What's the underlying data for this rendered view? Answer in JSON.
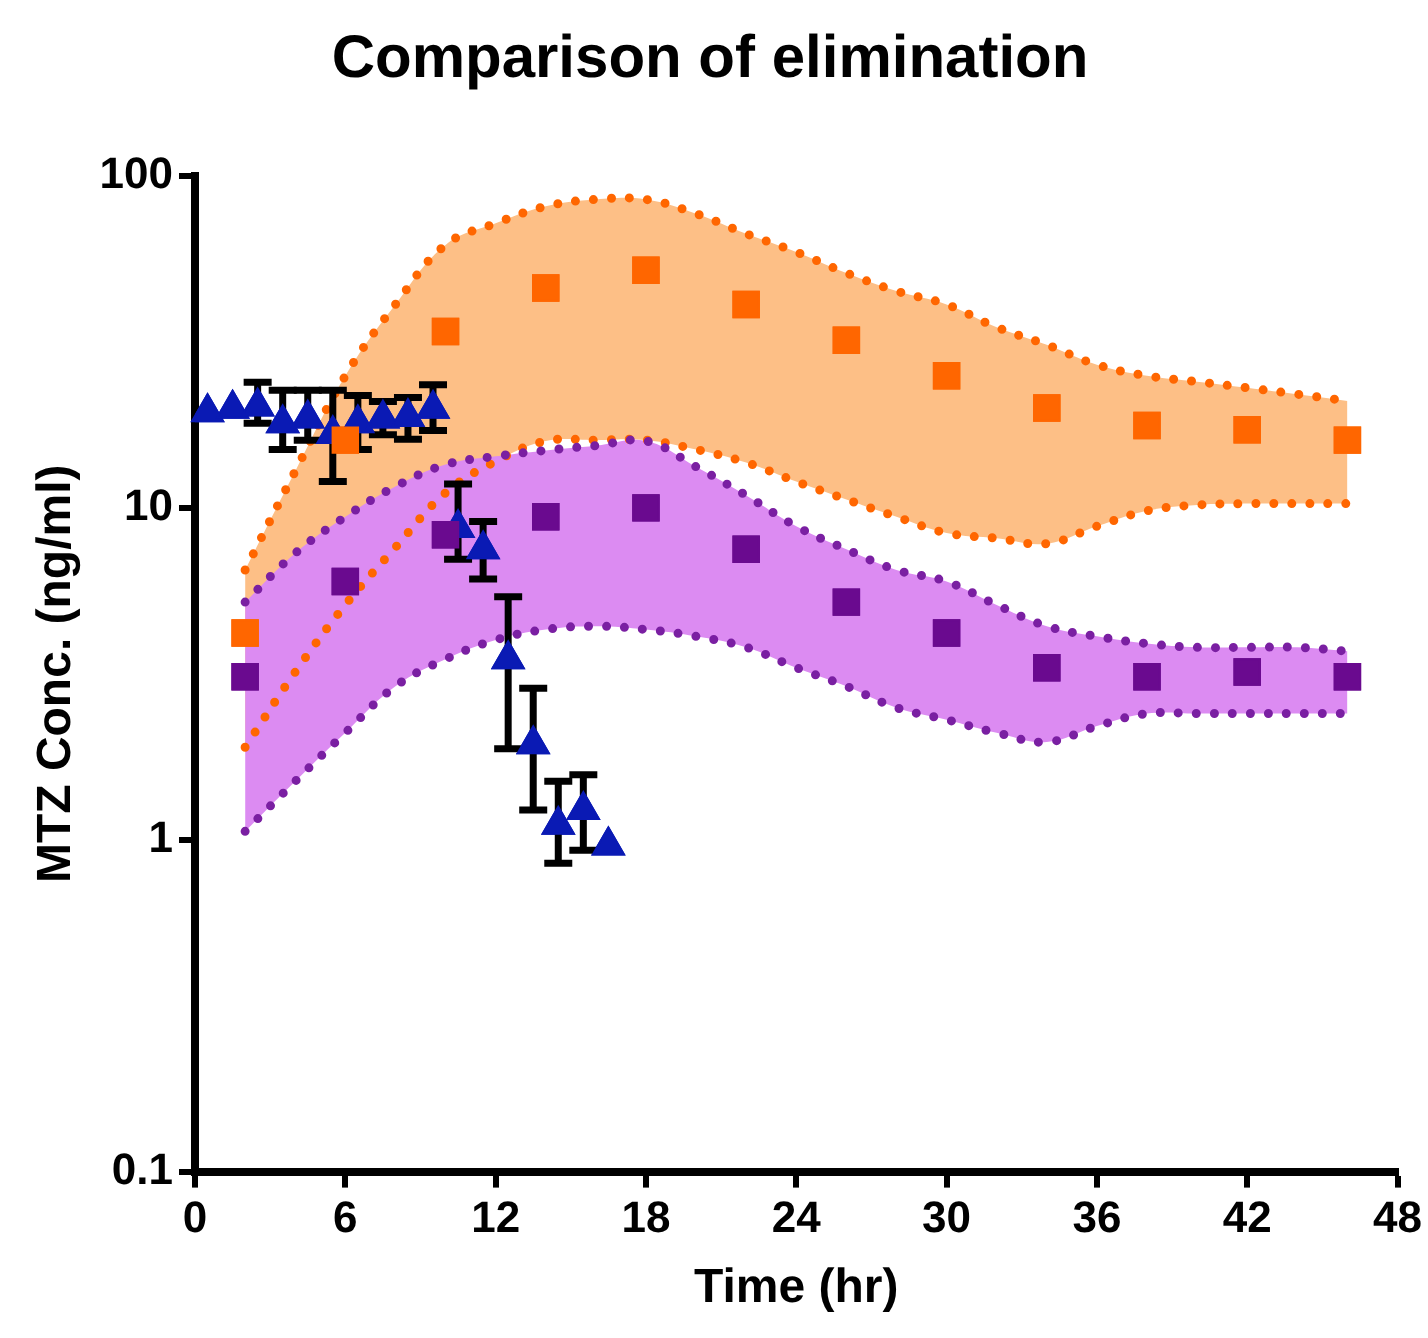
{
  "chart_data": {
    "type": "scatter",
    "title": "Comparison of elimination",
    "xlabel": "Time (hr)",
    "ylabel": "MTZ Conc. (ng/ml)",
    "log": "y",
    "grid": false,
    "legend": false,
    "xlim": [
      0,
      48
    ],
    "xticks": [
      0,
      6,
      12,
      18,
      24,
      30,
      36,
      42,
      48
    ],
    "ylim": [
      0.1,
      100
    ],
    "yticks": [
      0.1,
      1,
      10,
      100
    ],
    "series": [
      {
        "type": "area",
        "color": "#dc8bf2",
        "x": [
          2,
          4,
          6,
          8,
          10,
          12,
          14,
          16,
          18,
          20,
          22,
          24,
          26,
          28,
          30,
          32,
          34,
          36,
          38,
          40,
          42,
          44,
          46
        ],
        "values": [
          null,
          null,
          null,
          null,
          null,
          null,
          null,
          null,
          null,
          null,
          null,
          null,
          null,
          null,
          null,
          null,
          null,
          null,
          null,
          null,
          null,
          null,
          null
        ],
        "upper": [
          5.2,
          7.3,
          9.4,
          11.6,
          13.5,
          14.3,
          14.9,
          15.4,
          15.9,
          13.3,
          10.9,
          8.8,
          7.5,
          6.5,
          6,
          5.1,
          4.4,
          4.1,
          3.9,
          3.8,
          3.8,
          3.8,
          3.7
        ],
        "lower": [
          1.06,
          1.5,
          2.1,
          2.9,
          3.5,
          4,
          4.3,
          4.4,
          4.3,
          4.1,
          3.8,
          3.3,
          2.9,
          2.5,
          2.3,
          2.1,
          1.97,
          2.2,
          2.4,
          2.4,
          2.4,
          2.4,
          2.4
        ]
      },
      {
        "type": "area",
        "color": "#fdbf86",
        "x": [
          2,
          4,
          6,
          8,
          10,
          12,
          14,
          16,
          18,
          20,
          22,
          24,
          26,
          28,
          30,
          32,
          34,
          36,
          38,
          40,
          42,
          44,
          46
        ],
        "values": [
          null,
          null,
          null,
          null,
          null,
          null,
          null,
          null,
          null,
          null,
          null,
          null,
          null,
          null,
          null,
          null,
          null,
          null,
          null,
          null,
          null,
          null,
          null
        ],
        "upper": [
          6.5,
          12.9,
          25,
          41,
          62,
          72,
          81,
          85,
          85,
          77,
          67,
          59,
          51,
          45,
          41,
          35,
          31,
          27,
          25,
          24,
          23,
          22,
          21
        ],
        "lower": [
          1.9,
          3.2,
          5.1,
          7.6,
          11.1,
          13.8,
          15.9,
          16,
          16,
          15,
          13.7,
          12,
          10.6,
          9.4,
          8.4,
          8.1,
          7.8,
          8.8,
          9.8,
          10.2,
          10.3,
          10.3,
          10.3
        ]
      },
      {
        "type": "line",
        "color": "#7a1fa2",
        "line_style": "dotted",
        "marker": "none",
        "x": [
          2,
          4,
          6,
          8,
          10,
          12,
          14,
          16,
          18,
          20,
          22,
          24,
          26,
          28,
          30,
          32,
          34,
          36,
          38,
          40,
          42,
          44,
          46
        ],
        "values": [
          5.2,
          7.3,
          9.4,
          11.6,
          13.5,
          14.3,
          14.9,
          15.4,
          15.9,
          13.3,
          10.9,
          8.8,
          7.5,
          6.5,
          6,
          5.1,
          4.4,
          4.1,
          3.9,
          3.8,
          3.8,
          3.8,
          3.7
        ]
      },
      {
        "type": "line",
        "color": "#7a1fa2",
        "line_style": "dotted",
        "marker": "none",
        "x": [
          2,
          4,
          6,
          8,
          10,
          12,
          14,
          16,
          18,
          20,
          22,
          24,
          26,
          28,
          30,
          32,
          34,
          36,
          38,
          40,
          42,
          44,
          46
        ],
        "values": [
          1.06,
          1.5,
          2.1,
          2.9,
          3.5,
          4,
          4.3,
          4.4,
          4.3,
          4.1,
          3.8,
          3.3,
          2.9,
          2.5,
          2.3,
          2.1,
          1.97,
          2.2,
          2.4,
          2.4,
          2.4,
          2.4,
          2.4
        ]
      },
      {
        "type": "line",
        "color": "#ff6600",
        "line_style": "dotted",
        "marker": "none",
        "x": [
          2,
          4,
          6,
          8,
          10,
          12,
          14,
          16,
          18,
          20,
          22,
          24,
          26,
          28,
          30,
          32,
          34,
          36,
          38,
          40,
          42,
          44,
          46
        ],
        "values": [
          6.5,
          12.9,
          25,
          41,
          62,
          72,
          81,
          85,
          85,
          77,
          67,
          59,
          51,
          45,
          41,
          35,
          31,
          27,
          25,
          24,
          23,
          22,
          21
        ]
      },
      {
        "type": "line",
        "color": "#ff6600",
        "line_style": "dotted",
        "marker": "none",
        "x": [
          2,
          4,
          6,
          8,
          10,
          12,
          14,
          16,
          18,
          20,
          22,
          24,
          26,
          28,
          30,
          32,
          34,
          36,
          38,
          40,
          42,
          44,
          46
        ],
        "values": [
          1.9,
          3.2,
          5.1,
          7.6,
          11.1,
          13.8,
          15.9,
          16,
          16,
          15,
          13.7,
          12,
          10.6,
          9.4,
          8.4,
          8.1,
          7.8,
          8.8,
          9.8,
          10.2,
          10.3,
          10.3,
          10.3
        ]
      },
      {
        "type": "scatter",
        "color": "#ff6600",
        "marker": "square",
        "x": [
          2,
          6,
          10,
          14,
          18,
          22,
          26,
          30,
          34,
          38,
          42,
          46
        ],
        "values": [
          4.2,
          16,
          34,
          46,
          52,
          41,
          32,
          25,
          20,
          17.7,
          17.2,
          16
        ]
      },
      {
        "type": "scatter",
        "color": "#6a0a8f",
        "marker": "square",
        "x": [
          2,
          6,
          10,
          14,
          18,
          22,
          26,
          30,
          34,
          38,
          42,
          46
        ],
        "values": [
          3.1,
          6,
          8.3,
          9.4,
          10,
          7.5,
          5.2,
          4.2,
          3.3,
          3.1,
          3.2,
          3.1
        ]
      },
      {
        "type": "scatter",
        "color": "#0a1ab4",
        "marker": "triangle",
        "x": [
          0.5,
          1.5,
          2.5,
          3.5,
          4.5,
          5.5,
          6.5,
          7.5,
          8.5,
          9.5,
          10.5,
          11.5,
          12.5,
          13.5,
          14.5,
          15.5,
          16.5
        ],
        "values": [
          19.4,
          19.9,
          20.2,
          18,
          18.6,
          16.7,
          18,
          18.6,
          18.8,
          19.9,
          8.7,
          7.5,
          3.5,
          1.94,
          1.11,
          1.23,
          0.96
        ],
        "errors": [
          null,
          null,
          [
            18,
            23.9
          ],
          [
            15,
            22.6
          ],
          [
            16,
            22.6
          ],
          [
            12,
            22.6
          ],
          [
            15,
            21.8
          ],
          [
            16.6,
            20.9
          ],
          [
            16.1,
            21.5
          ],
          [
            17.1,
            23.5
          ],
          [
            7,
            11.8
          ],
          [
            6.1,
            9.1
          ],
          [
            1.88,
            5.4
          ],
          [
            1.23,
            2.86
          ],
          [
            0.85,
            1.5
          ],
          [
            0.93,
            1.57
          ],
          null
        ]
      }
    ]
  }
}
